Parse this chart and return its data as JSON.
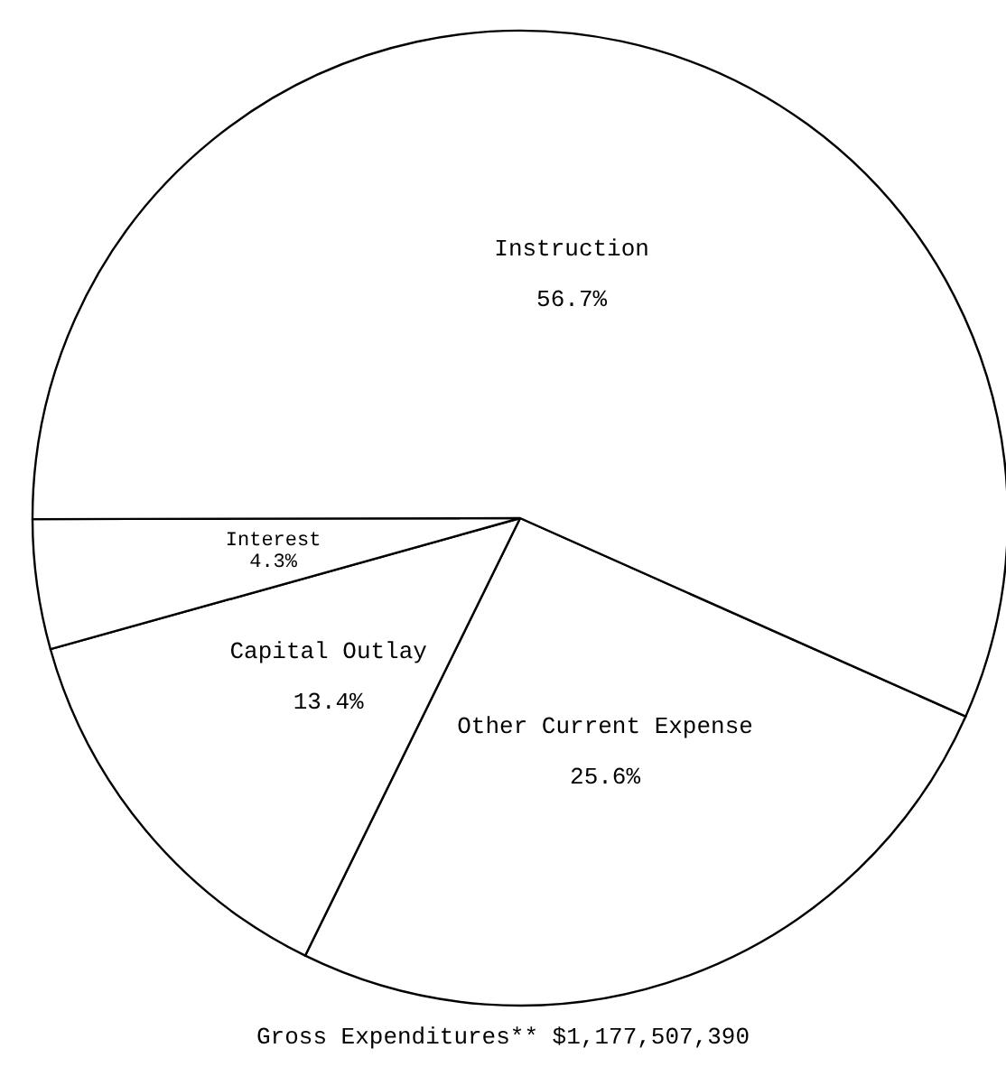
{
  "chart_data": {
    "type": "pie",
    "title": "Gross Expenditures** $1,177,507,390",
    "categories": [
      "Other Current Expense",
      "Capital Outlay",
      "Interest",
      "Instruction"
    ],
    "values": [
      25.6,
      13.4,
      4.3,
      56.7
    ],
    "colors": [
      "#ffffff",
      "#ffffff",
      "#ffffff",
      "#ffffff"
    ],
    "value_labels": [
      "25.6%",
      "13.4%",
      "4.3%",
      "56.7%"
    ],
    "legend": false
  }
}
